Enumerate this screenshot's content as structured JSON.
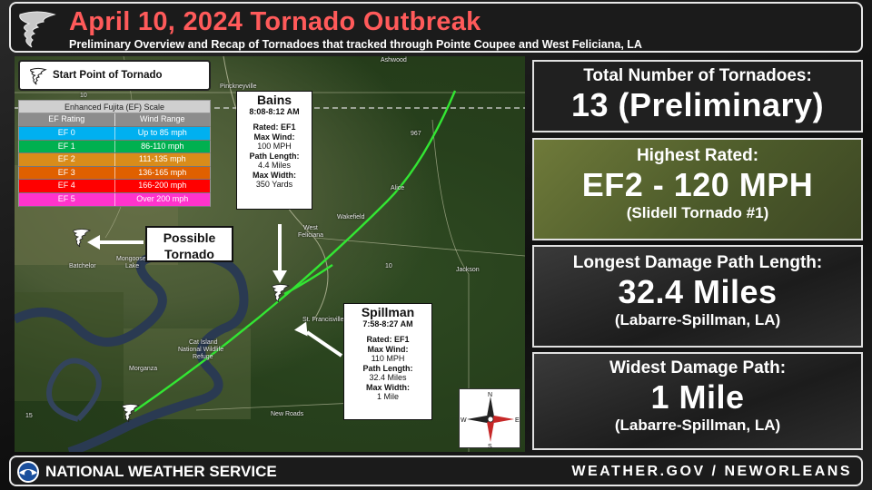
{
  "header": {
    "title": "April 10, 2024 Tornado Outbreak",
    "subtitle": "Preliminary Overview and Recap of Tornadoes that tracked through Pointe Coupee and West Feliciana, LA"
  },
  "legend": {
    "start_point_label": "Start Point of Tornado",
    "icon": "tornado-icon"
  },
  "ef_scale": {
    "caption": "Enhanced Fujita (EF) Scale",
    "headers": [
      "EF Rating",
      "Wind Range"
    ],
    "rows": [
      {
        "rating": "EF 0",
        "range": "Up to 85 mph",
        "color": "#00b0f0"
      },
      {
        "rating": "EF 1",
        "range": "86-110 mph",
        "color": "#00b050"
      },
      {
        "rating": "EF 2",
        "range": "111-135 mph",
        "color": "#d98c1a"
      },
      {
        "rating": "EF 3",
        "range": "136-165 mph",
        "color": "#e06000"
      },
      {
        "rating": "EF 4",
        "range": "166-200 mph",
        "color": "#ff0000"
      },
      {
        "rating": "EF 5",
        "range": "Over 200 mph",
        "color": "#ff33cc"
      }
    ]
  },
  "bains": {
    "title": "Bains",
    "time": "8:08-8:12 AM",
    "rated_label": "Rated: EF1",
    "wind_label": "Max Wind:",
    "wind_value": "100 MPH",
    "path_label": "Path Length:",
    "path_value": "4.4 Miles",
    "width_label": "Max Width:",
    "width_value": "350 Yards"
  },
  "spillman": {
    "title": "Spillman",
    "time": "7:58-8:27 AM",
    "rated_label": "Rated: EF1",
    "wind_label": "Max Wind:",
    "wind_value": "110 MPH",
    "path_label": "Path Length:",
    "path_value": "32.4 Miles",
    "width_label": "Max Width:",
    "width_value": "1 Mile"
  },
  "possible": {
    "line1": "Possible",
    "line2": "Tornado"
  },
  "map_labels": {
    "ashwood": "Ashwood",
    "pinckneyville": "Pinckneyville",
    "alice": "Alice",
    "wakefield": "Wakefield",
    "west": "West",
    "feliciana": "Feliciana",
    "jackson": "Jackson",
    "st_francisville": "St. Francisville",
    "cat_island": "Cat Island",
    "nwr1": "National Wildlife",
    "nwr2": "Refuge",
    "morganza": "Morganza",
    "new_roads": "New Roads",
    "batchelor": "Batchelor",
    "mongoose": "Mongoose",
    "lake": "Lake",
    "hwy_967": "967",
    "hwy_10a": "10",
    "hwy_10b": "10",
    "hwy_61": "61",
    "hwy_15": "15"
  },
  "compass": {
    "n": "N",
    "s": "S",
    "e": "E",
    "w": "W"
  },
  "stats": {
    "total": {
      "label": "Total Number of Tornadoes:",
      "value": "13 (Preliminary)"
    },
    "highest": {
      "label": "Highest Rated:",
      "value": "EF2 - 120 MPH",
      "note": "(Slidell Tornado #1)"
    },
    "longest": {
      "label": "Longest Damage Path Length:",
      "value": "32.4 Miles",
      "note": "(Labarre-Spillman, LA)"
    },
    "widest": {
      "label": "Widest Damage Path:",
      "value": "1 Mile",
      "note": "(Labarre-Spillman, LA)"
    }
  },
  "footer": {
    "left": "NATIONAL WEATHER SERVICE",
    "right": "WEATHER.GOV / NEWORLEANS"
  },
  "colors": {
    "title_red": "#ff5a5a",
    "track_green": "#33e633",
    "olive_panel": "#5c6b30"
  }
}
